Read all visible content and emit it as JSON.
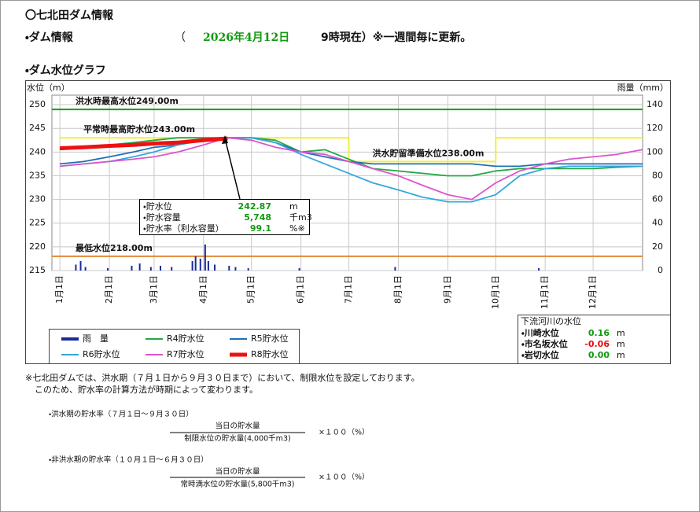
{
  "header": {
    "title": "〇七北田ダム情報",
    "info_label": "・ダム情報",
    "open_paren": "（",
    "date": "2026年4月12日",
    "time_note": "9時現在）※一週間毎に更新。",
    "graph_label": "・ダム水位グラフ"
  },
  "chart_data": {
    "type": "line",
    "y_label": "水位（m）",
    "y2_label": "雨量（mm）",
    "xlim": [
      -5,
      365
    ],
    "xticks": [
      {
        "value": 0,
        "label": "1月1日"
      },
      {
        "value": 31,
        "label": "2月1日"
      },
      {
        "value": 59,
        "label": "3月1日"
      },
      {
        "value": 90,
        "label": "4月1日"
      },
      {
        "value": 120,
        "label": "5月1日"
      },
      {
        "value": 151,
        "label": "6月1日"
      },
      {
        "value": 181,
        "label": "7月1日"
      },
      {
        "value": 212,
        "label": "8月1日"
      },
      {
        "value": 243,
        "label": "9月1日"
      },
      {
        "value": 273,
        "label": "10月1日"
      },
      {
        "value": 304,
        "label": "11月1日"
      },
      {
        "value": 334,
        "label": "12月1日"
      }
    ],
    "ylim": [
      215,
      252
    ],
    "yticks": [
      215,
      220,
      225,
      230,
      235,
      240,
      245,
      250
    ],
    "y2lim": [
      0,
      148
    ],
    "y2ticks": [
      0,
      20,
      40,
      60,
      80,
      100,
      120,
      140
    ],
    "grid": true,
    "reference_lines": [
      {
        "label": "洪水時最高水位249.00m",
        "value": 249,
        "x": [
          -5,
          365
        ],
        "color": "#1e9a1e"
      },
      {
        "label": "平常時最高貯水位243.00m",
        "value": 243,
        "x": [
          0,
          181
        ],
        "color": "#f2ee3a"
      },
      {
        "label": "洪水貯留準備水位238.00m",
        "value": 238,
        "x": [
          181,
          273
        ],
        "color": "#f2ee3a"
      },
      {
        "value": 243,
        "x": [
          273,
          365
        ],
        "color": "#f2ee3a"
      },
      {
        "label": "最低水位218.00m",
        "value": 218,
        "x": [
          -5,
          365
        ],
        "color": "#e0893a"
      }
    ],
    "x": [
      0,
      15,
      31,
      46,
      59,
      74,
      90,
      105,
      120,
      135,
      151,
      166,
      181,
      196,
      212,
      227,
      243,
      258,
      273,
      288,
      304,
      319,
      334,
      349,
      365
    ],
    "series": [
      {
        "name": "雨　量",
        "type": "bar",
        "axis": "y2",
        "color": "#1a2a9a",
        "x": [
          10,
          13,
          16,
          30,
          45,
          50,
          57,
          63,
          70,
          83,
          85,
          88,
          91,
          93,
          97,
          106,
          110,
          118,
          150,
          210,
          300
        ],
        "values": [
          5,
          8,
          3,
          2,
          4,
          6,
          3,
          4,
          3,
          8,
          12,
          10,
          22,
          8,
          5,
          4,
          3,
          2,
          2,
          3,
          2
        ]
      },
      {
        "name": "R4貯水位",
        "color": "#22a844",
        "values": [
          240.5,
          241,
          241.5,
          242,
          242.5,
          243,
          243,
          243,
          243,
          242.5,
          240,
          240.5,
          238.5,
          236.5,
          236,
          235.5,
          235,
          235,
          236,
          236.5,
          236.5,
          236.5,
          236.5,
          236.8,
          237
        ]
      },
      {
        "name": "R5貯水位",
        "color": "#1f6fb5",
        "values": [
          237.5,
          238,
          239,
          240,
          241,
          241.5,
          242.5,
          243,
          243,
          242,
          240,
          239,
          238,
          237.5,
          237.5,
          237.5,
          237.5,
          237.5,
          237,
          237,
          237.5,
          237.5,
          237.5,
          237.5,
          237.5
        ]
      },
      {
        "name": "R6貯水位",
        "color": "#33a8dd",
        "values": [
          237,
          237.5,
          238,
          239,
          240,
          241.5,
          242.5,
          243,
          243,
          242,
          239.5,
          237.5,
          235.5,
          233.5,
          232,
          230.5,
          229.5,
          229.5,
          231,
          235,
          236.5,
          237,
          237,
          237,
          237
        ]
      },
      {
        "name": "R7貯水位",
        "color": "#dd55cc",
        "values": [
          237,
          237.5,
          238,
          238.5,
          239,
          240,
          241.5,
          243,
          242.5,
          241,
          240,
          239.5,
          238,
          236.5,
          235,
          233,
          231,
          230,
          233.5,
          236,
          237.5,
          238.5,
          239,
          239.5,
          240.5
        ]
      },
      {
        "name": "R8貯水位",
        "color": "#ee1111",
        "line_width": 5,
        "values": [
          240.8,
          241,
          241.3,
          241.5,
          241.8,
          242,
          242.5,
          242.87,
          null,
          null,
          null,
          null,
          null,
          null,
          null,
          null,
          null,
          null,
          null,
          null,
          null,
          null,
          null,
          null,
          null
        ]
      }
    ]
  },
  "storage_box": {
    "items": [
      {
        "label": "・貯水位",
        "value": "242.87",
        "unit": "m"
      },
      {
        "label": "・貯水容量",
        "value": "5,748",
        "unit": "千m3"
      },
      {
        "label": "・貯水率（利水容量）",
        "value": "99.1",
        "unit": "%※"
      }
    ]
  },
  "downstream": {
    "title": "下流河川の水位",
    "items": [
      {
        "label": "・川崎水位",
        "value": "0.16",
        "unit": "m",
        "color": "#119911"
      },
      {
        "label": "・市名坂水位",
        "value": "-0.06",
        "unit": "m",
        "color": "#e01010"
      },
      {
        "label": "・岩切水位",
        "value": "0.00",
        "unit": "m",
        "color": "#119911"
      }
    ]
  },
  "notes": {
    "lines": [
      "※七北田ダムでは、洪水期（７月１日から９月３０日まで）において、制限水位を設定しております。",
      "このため、貯水率の計算方法が時期によって変わります。"
    ],
    "flood": {
      "title": "・洪水期の貯水率（７月１日～９月３０日）",
      "numerator": "当日の貯水量",
      "denominator": "制限水位の貯水量(4,000千m3)",
      "factor": "×１００（%）"
    },
    "nonflood": {
      "title": "・非洪水期の貯水率（１０月１日～６月３０日）",
      "numerator": "当日の貯水量",
      "denominator": "常時満水位の貯水量(5,800千m3)",
      "factor": "×１００（%）"
    }
  }
}
